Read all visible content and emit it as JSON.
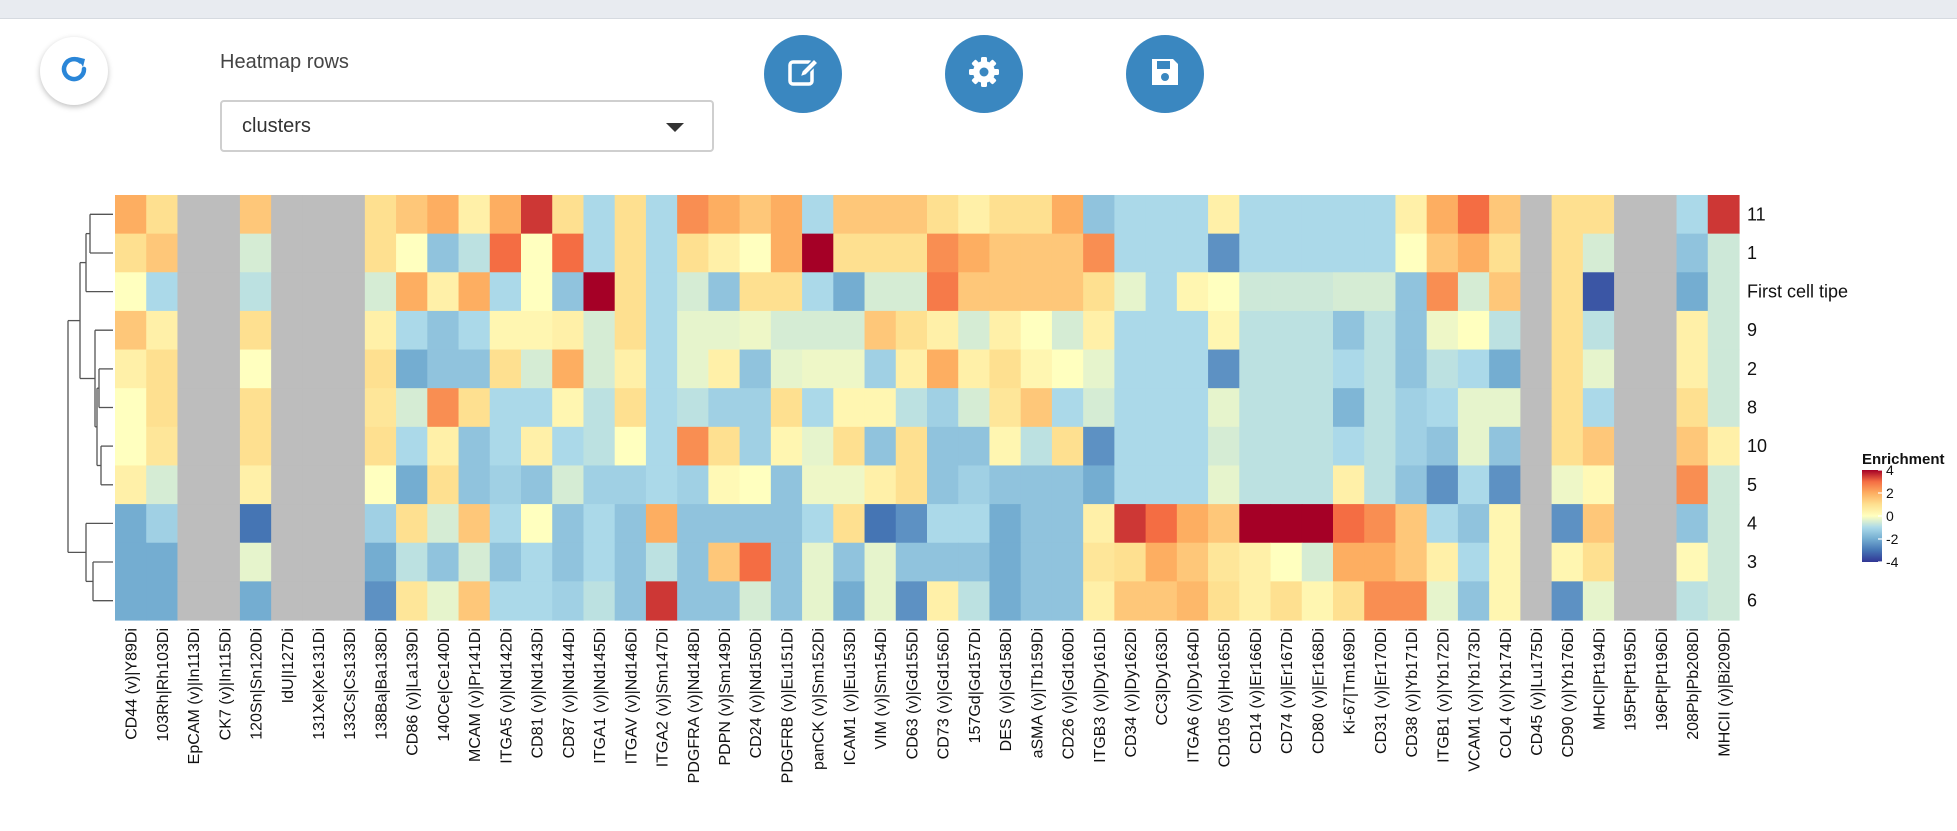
{
  "toolbar": {
    "rows_label": "Heatmap rows",
    "rows_select_value": "clusters",
    "refresh_icon": "refresh-icon",
    "edit_icon": "edit-icon",
    "settings_icon": "gear-icon",
    "save_icon": "save-icon"
  },
  "chart_data": {
    "type": "heatmap",
    "title": "",
    "xlabel": "",
    "ylabel": "",
    "grid": false,
    "legend_title": "Enrichment",
    "legend_ticks": [
      4,
      2,
      0,
      -2,
      -4
    ],
    "legend_placement": "right",
    "color_range": [
      -4,
      4
    ],
    "missing_color": "#bdbdbd",
    "dendrogram": "left",
    "rows": [
      "11",
      "1",
      "First cell tipe",
      "9",
      "2",
      "8",
      "10",
      "5",
      "4",
      "3",
      "6"
    ],
    "columns": [
      "CD44 (v)|Y89Di",
      "103Rh|Rh103Di",
      "EpCAM (v)|In113Di",
      "CK7 (v)|In115Di",
      "120Sn|Sn120Di",
      "IdU|I127Di",
      "131Xe|Xe131Di",
      "133Cs|Cs133Di",
      "138Ba|Ba138Di",
      "CD86 (v)|La139Di",
      "140Ce|Ce140Di",
      "MCAM (v)|Pr141Di",
      "ITGA5 (v)|Nd142Di",
      "CD81 (v)|Nd143Di",
      "CD87 (v)|Nd144Di",
      "ITGA1 (v)|Nd145Di",
      "ITGAV (v)|Nd146Di",
      "ITGA2 (v)|Sm147Di",
      "PDGFRA (v)|Nd148Di",
      "PDPN (v)|Sm149Di",
      "CD24 (v)|Nd150Di",
      "PDGFRB (v)|Eu151Di",
      "panCK (v)|Sm152Di",
      "ICAM1 (v)|Eu153Di",
      "VIM (v)|Sm154Di",
      "CD63 (v)|Gd155Di",
      "CD73 (v)|Gd156Di",
      "157Gd|Gd157Di",
      "DES (v)|Gd158Di",
      "aSMA (v)|Tb159Di",
      "CD26 (v)|Gd160Di",
      "ITGB3 (v)|Dy161Di",
      "CD34 (v)|Dy162Di",
      "CC3|Dy163Di",
      "ITGA6 (v)|Dy164Di",
      "CD105 (v)|Ho165Di",
      "CD14 (v)|Er166Di",
      "CD74 (v)|Er167Di",
      "CD80 (v)|Er168Di",
      "Ki-67|Tm169Di",
      "CD31 (v)|Er170Di",
      "CD38 (v)|Yb171Di",
      "ITGB1 (v)|Yb172Di",
      "VCAM1 (v)|Yb173Di",
      "COL4 (v)|Yb174Di",
      "CD45 (v)|Lu175Di",
      "CD90 (v)|Yb176Di",
      "MHCI|Pt194Di",
      "195Pt|Pt195Di",
      "196Pt|Pt196Di",
      "208Pb|Pb208Di",
      "MHCII (v)|Bi209Di"
    ],
    "values": [
      [
        2,
        1,
        null,
        null,
        1.5,
        null,
        null,
        null,
        1,
        1.5,
        2,
        0.5,
        2,
        3.5,
        1,
        -1,
        1,
        -1,
        2.5,
        2,
        1.5,
        2,
        -1,
        1.5,
        1.5,
        1.5,
        1,
        0.5,
        1,
        1,
        2,
        -1.5,
        -1,
        -1,
        -1,
        0.5,
        -1,
        -1,
        -1,
        -1,
        -1,
        0.5,
        2,
        3,
        1.5,
        null,
        1,
        1,
        null,
        null,
        -1,
        3.5
      ],
      [
        1,
        1.5,
        null,
        null,
        -0.5,
        null,
        null,
        null,
        1,
        0,
        -1.5,
        -0.8,
        3,
        0,
        3,
        -1,
        1,
        -1,
        1,
        0.5,
        0,
        2,
        4,
        1,
        1,
        1,
        2.5,
        2,
        1.5,
        1.5,
        1.5,
        2.5,
        -1,
        -1,
        -1,
        -2.5,
        -1,
        -1,
        -1,
        -1,
        -1,
        0,
        1.5,
        2,
        1,
        null,
        1,
        -0.5,
        null,
        null,
        -1.5,
        -0.6
      ],
      [
        0,
        -1,
        null,
        null,
        -0.8,
        null,
        null,
        null,
        -0.5,
        2,
        0.5,
        2,
        -1,
        0,
        -1.5,
        4,
        1,
        -1,
        -0.5,
        -1.5,
        1,
        1,
        -1,
        -2,
        -0.5,
        -0.5,
        2.8,
        1.5,
        1.5,
        1.5,
        1.5,
        1,
        -0.3,
        -1,
        0.3,
        0,
        -0.6,
        -0.6,
        -0.6,
        -0.5,
        -0.5,
        -1.5,
        2.5,
        -0.5,
        1.5,
        null,
        1,
        -3.5,
        null,
        null,
        -2,
        -0.6
      ],
      [
        1.5,
        0.5,
        null,
        null,
        1,
        null,
        null,
        null,
        0.5,
        -1,
        -1.5,
        -1,
        0.3,
        0.3,
        0.5,
        -0.5,
        1,
        -1,
        -0.3,
        -0.3,
        -0.2,
        -0.5,
        -0.5,
        -0.5,
        1.5,
        1,
        0.5,
        -0.5,
        0.5,
        0,
        -0.5,
        0.5,
        -1,
        -1,
        -1,
        0.3,
        -0.8,
        -0.8,
        -0.8,
        -1.5,
        -0.8,
        -1.5,
        -0.2,
        0,
        -0.8,
        null,
        1,
        -0.8,
        null,
        null,
        0.5,
        -0.6
      ],
      [
        0.5,
        1,
        null,
        null,
        0,
        null,
        null,
        null,
        1,
        -2,
        -1.5,
        -1.5,
        1,
        -0.5,
        2,
        -0.5,
        0.5,
        -1,
        -0.3,
        0.5,
        -1.5,
        -0.3,
        -0.2,
        -0.2,
        -1.2,
        0.5,
        2,
        0.5,
        1,
        0.3,
        0,
        -0.3,
        -1,
        -1,
        -1,
        -2.5,
        -0.8,
        -0.8,
        -0.8,
        -1,
        -0.8,
        -1.5,
        -0.8,
        -1,
        -2,
        null,
        1,
        -0.3,
        null,
        null,
        0.5,
        -0.6
      ],
      [
        0,
        1,
        null,
        null,
        1,
        null,
        null,
        null,
        0.8,
        -0.5,
        2.5,
        1,
        -1,
        -1,
        0.3,
        -0.8,
        1,
        -1,
        -0.8,
        -1.2,
        -1.2,
        1,
        -1,
        0.3,
        0.3,
        -0.8,
        -1.2,
        -0.5,
        0.8,
        1.5,
        -1,
        -0.5,
        -1,
        -1,
        -1,
        -0.3,
        -0.8,
        -0.8,
        -0.8,
        -1.8,
        -0.8,
        -1.2,
        -1,
        -0.3,
        -0.3,
        null,
        1,
        -1,
        null,
        null,
        1,
        -0.6
      ],
      [
        0,
        0.8,
        null,
        null,
        1,
        null,
        null,
        null,
        1,
        -1,
        0.5,
        -1.5,
        -1,
        0.5,
        -1,
        -0.8,
        0,
        -1,
        2.5,
        1,
        -1.2,
        0.3,
        -0.3,
        1,
        -1.5,
        1,
        -1.5,
        -1.5,
        0.3,
        -0.8,
        1,
        -2.5,
        -1,
        -1,
        -1,
        -0.5,
        -0.8,
        -0.8,
        -0.8,
        -1,
        -0.8,
        -1.2,
        -1.5,
        -0.3,
        -1.5,
        null,
        1,
        1.5,
        null,
        null,
        1.5,
        0.5
      ],
      [
        0.5,
        -0.5,
        null,
        null,
        0.5,
        null,
        null,
        null,
        0,
        -2,
        1,
        -1.5,
        -1.2,
        -1.5,
        -0.5,
        -1.2,
        -1.2,
        -1,
        -1.2,
        0.2,
        0,
        -1.5,
        -0.2,
        -0.2,
        0.5,
        1,
        -1.5,
        -1.2,
        -1.5,
        -1.5,
        -1.5,
        -2,
        -1,
        -1,
        -1,
        -0.3,
        -0.8,
        -0.8,
        -0.8,
        0.5,
        -0.8,
        -1.5,
        -2.5,
        -1,
        -2.5,
        null,
        -0.2,
        0.2,
        null,
        null,
        2.5,
        -0.6
      ],
      [
        -2,
        -1.2,
        null,
        null,
        -3,
        null,
        null,
        null,
        -1.2,
        1,
        -0.5,
        1.5,
        -1,
        0,
        -1.5,
        -1,
        -1.5,
        2,
        -1.5,
        -1.5,
        -1.5,
        -1.5,
        -1,
        1,
        -3,
        -2.5,
        -1,
        -1,
        -2,
        -1.5,
        -1.5,
        0.5,
        3.5,
        3,
        2,
        1.5,
        4,
        4,
        4,
        3,
        2.5,
        1.5,
        -1,
        -1.5,
        0.3,
        null,
        -2.5,
        1.5,
        null,
        null,
        -1.5,
        -0.6
      ],
      [
        -2,
        -2,
        null,
        null,
        -0.3,
        null,
        null,
        null,
        -2,
        -0.8,
        -1.5,
        -0.5,
        -1.5,
        -1,
        -1.5,
        -1,
        -1.5,
        -0.8,
        -1.5,
        1.5,
        3,
        -1.5,
        -0.3,
        -1.5,
        -0.3,
        -1.5,
        -1.5,
        -1.5,
        -2,
        -1.5,
        -1.5,
        0.8,
        1,
        2,
        1.5,
        0.8,
        0.5,
        0,
        -0.5,
        2,
        2,
        1.5,
        0.5,
        -1,
        0.3,
        null,
        0.3,
        1,
        null,
        null,
        0.2,
        -0.6
      ],
      [
        -2,
        -2,
        null,
        null,
        -2,
        null,
        null,
        null,
        -2.5,
        0.8,
        -0.3,
        1.5,
        -1,
        -1,
        -1.2,
        -0.8,
        -1.5,
        3.5,
        -1.5,
        -1.5,
        -0.5,
        -1.5,
        -0.3,
        -2,
        -0.3,
        -2.5,
        0.5,
        -0.8,
        -2,
        -1.5,
        -1.5,
        0.5,
        1.5,
        1.5,
        1.8,
        1,
        0.5,
        1,
        0.3,
        1,
        2.5,
        2.5,
        -0.3,
        -1.5,
        0.3,
        null,
        -2.5,
        -0.3,
        null,
        null,
        -0.8,
        -0.6
      ]
    ]
  }
}
